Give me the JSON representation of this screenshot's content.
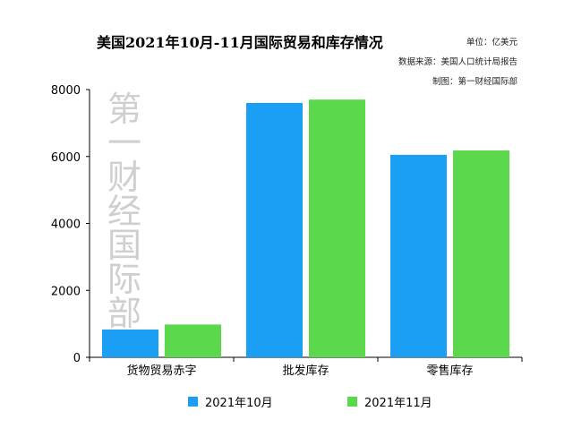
{
  "chart_data": {
    "type": "bar",
    "title": "美国2021年10月-11月国际贸易和库存情况",
    "unit_note": "单位：亿美元",
    "source_note": "数据来源：美国人口统计局报告",
    "maker_note": "制图：第一财经国际部",
    "watermark": "第一财经国际部",
    "categories": [
      "货物贸易赤字",
      "批发库存",
      "零售库存"
    ],
    "series": [
      {
        "name": "2021年10月",
        "color": "#1a9ff5",
        "values": [
          830,
          7600,
          6050
        ]
      },
      {
        "name": "2021年11月",
        "color": "#5cd84c",
        "values": [
          980,
          7700,
          6180
        ]
      }
    ],
    "ylim": [
      0,
      8000
    ],
    "yticks": [
      0,
      2000,
      4000,
      6000,
      8000
    ],
    "grid": false,
    "legend": "bottom"
  }
}
